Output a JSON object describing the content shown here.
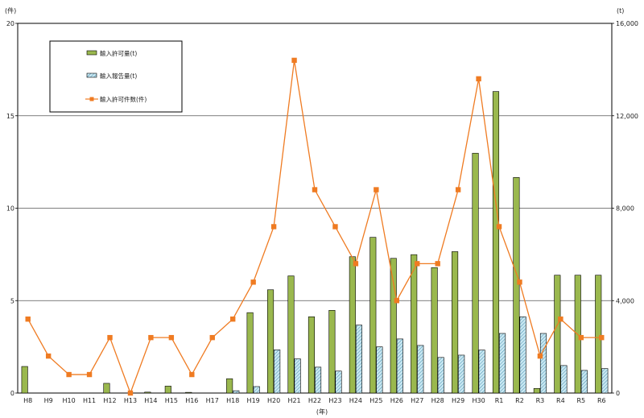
{
  "chart_data": {
    "type": "bar",
    "categories": [
      "H8",
      "H9",
      "H10",
      "H11",
      "H12",
      "H13",
      "H14",
      "H15",
      "H16",
      "H17",
      "H18",
      "H19",
      "H20",
      "H21",
      "H22",
      "H23",
      "H24",
      "H25",
      "H26",
      "H27",
      "H28",
      "H29",
      "H30",
      "R1",
      "R2",
      "R3",
      "R4",
      "R5",
      "R6"
    ],
    "left_axis": {
      "unit": "(件)",
      "ylim": [
        0,
        20
      ],
      "ticks": [
        "0",
        "5",
        "10",
        "15",
        "20"
      ]
    },
    "right_axis": {
      "unit": "(t)",
      "ylim": [
        0,
        16000
      ],
      "ticks": [
        "0",
        "4,000",
        "8,000",
        "12,000",
        "16,000"
      ]
    },
    "xlabel": "(年)",
    "series": [
      {
        "name": "輸入許可量(t)",
        "kind": "bar",
        "axis": "right",
        "color": "#9ab84e",
        "values": [
          1150,
          0,
          0,
          0,
          420,
          0,
          40,
          300,
          30,
          0,
          620,
          3480,
          4470,
          5070,
          3300,
          3580,
          5900,
          6740,
          5830,
          5990,
          5430,
          6120,
          10380,
          13050,
          9330,
          200,
          5100,
          5100,
          5100
        ]
      },
      {
        "name": "輸入報告量(t)",
        "kind": "bar",
        "axis": "right",
        "color": "#bfe3ee",
        "values": [
          0,
          0,
          0,
          0,
          0,
          0,
          0,
          0,
          0,
          0,
          100,
          280,
          1870,
          1480,
          1120,
          950,
          2940,
          2000,
          2340,
          2060,
          1540,
          1640,
          1860,
          2580,
          3300,
          2580,
          1190,
          980,
          1060
        ]
      },
      {
        "name": "輸入許可件数(件)",
        "kind": "line",
        "axis": "left",
        "color": "#ef7b22",
        "values": [
          4,
          2,
          1,
          1,
          3,
          0,
          3,
          3,
          1,
          3,
          4,
          6,
          9,
          18,
          11,
          9,
          7,
          11,
          5,
          7,
          7,
          11,
          17,
          9,
          6,
          2,
          4,
          3,
          3
        ]
      }
    ]
  }
}
